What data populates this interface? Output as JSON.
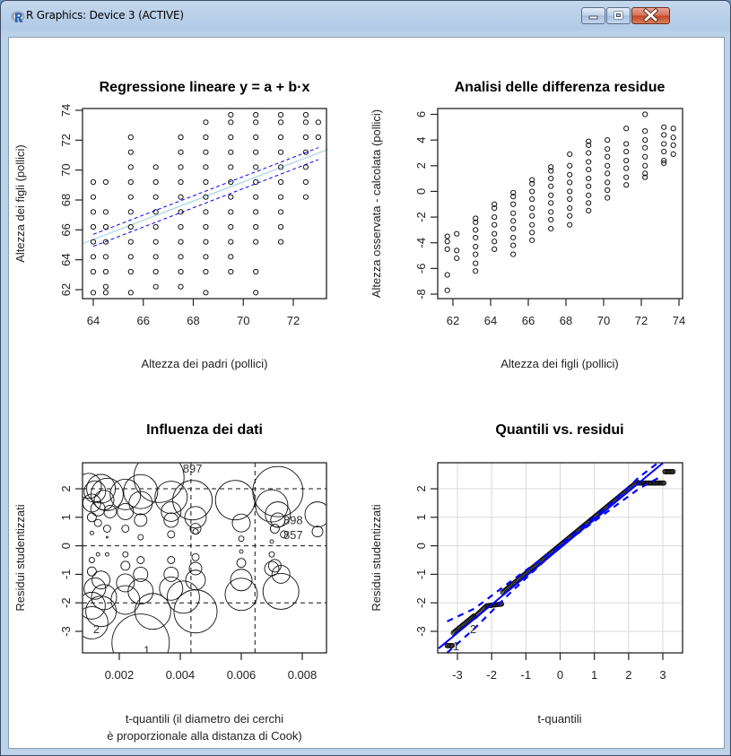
{
  "window": {
    "title": "R Graphics: Device 3 (ACTIVE)",
    "buttons": {
      "minimize": "minimize",
      "maximize": "maximize",
      "close": "close"
    }
  },
  "chart_data": [
    {
      "type": "scatter",
      "title": "Regressione lineare y = a + b·x",
      "xlabel": "Altezza dei padri (pollici)",
      "ylabel": "Altezza dei figli (pollici)",
      "xlim": [
        63.6,
        73.4
      ],
      "ylim": [
        61.4,
        74.4
      ],
      "xticks": [
        64,
        66,
        68,
        70,
        72
      ],
      "yticks": [
        62,
        64,
        66,
        68,
        70,
        72,
        74
      ],
      "grid": false,
      "columns": [
        {
          "x": 64.0,
          "y": [
            61.8,
            63.2,
            64.2,
            65.2,
            66.2,
            67.2,
            68.2,
            69.2
          ]
        },
        {
          "x": 64.5,
          "y": [
            61.8,
            62.2,
            63.2,
            64.2,
            65.2,
            66.2,
            67.2,
            69.2
          ]
        },
        {
          "x": 65.5,
          "y": [
            61.8,
            63.2,
            64.2,
            65.2,
            66.2,
            67.2,
            68.2,
            69.2,
            70.2,
            71.2,
            72.2
          ]
        },
        {
          "x": 66.5,
          "y": [
            62.2,
            63.2,
            64.2,
            65.2,
            66.2,
            67.2,
            68.2,
            69.2,
            70.2
          ]
        },
        {
          "x": 67.5,
          "y": [
            62.2,
            63.2,
            64.2,
            65.2,
            66.2,
            67.2,
            68.2,
            69.2,
            70.2,
            71.2,
            72.2
          ]
        },
        {
          "x": 68.5,
          "y": [
            61.8,
            63.2,
            64.2,
            65.2,
            66.2,
            67.2,
            68.2,
            69.2,
            70.2,
            71.2,
            72.2,
            73.2
          ]
        },
        {
          "x": 69.5,
          "y": [
            63.2,
            64.2,
            65.2,
            66.2,
            67.2,
            68.2,
            69.2,
            70.2,
            71.2,
            72.2,
            73.2,
            73.7
          ]
        },
        {
          "x": 70.5,
          "y": [
            61.8,
            63.2,
            65.2,
            66.2,
            67.2,
            68.2,
            69.2,
            70.2,
            71.2,
            72.2,
            73.2,
            73.7
          ]
        },
        {
          "x": 71.5,
          "y": [
            65.2,
            66.2,
            67.2,
            68.2,
            69.2,
            70.2,
            71.2,
            72.2,
            73.2,
            73.7
          ]
        },
        {
          "x": 72.5,
          "y": [
            68.2,
            69.2,
            70.2,
            71.2,
            72.2,
            73.2,
            73.7
          ]
        },
        {
          "x": 73.0,
          "y": [
            72.2,
            73.2
          ]
        }
      ],
      "regression_line": {
        "x": [
          63.6,
          73.4
        ],
        "y": [
          65.1,
          71.4
        ],
        "color": "#add8e6"
      },
      "confidence_band": {
        "x": [
          64.0,
          73.0
        ],
        "upper": [
          65.7,
          71.5
        ],
        "lower": [
          64.9,
          70.7
        ],
        "color": "#0000ff",
        "style": "dashed"
      }
    },
    {
      "type": "scatter",
      "title": "Analisi delle differenza residue",
      "xlabel": "Altezza dei figli (pollici)",
      "ylabel": "Altezza osservata - calcolata (pollici)",
      "xlim": [
        61.5,
        74.3
      ],
      "ylim": [
        -8.5,
        6.5
      ],
      "xticks": [
        62,
        64,
        66,
        68,
        70,
        72,
        74
      ],
      "yticks": [
        -8,
        -6,
        -4,
        -2,
        0,
        2,
        4,
        6
      ],
      "grid": false,
      "columns": [
        {
          "x": 61.7,
          "y": [
            -7.7,
            -6.5,
            -4.5,
            -3.9,
            -3.5
          ]
        },
        {
          "x": 62.2,
          "y": [
            -5.2,
            -4.6,
            -3.3
          ]
        },
        {
          "x": 63.2,
          "y": [
            -6.2,
            -5.6,
            -4.9,
            -4.3,
            -3.6,
            -3.0,
            -2.4,
            -2.1
          ]
        },
        {
          "x": 64.2,
          "y": [
            -4.5,
            -3.9,
            -3.3,
            -2.6,
            -2.0,
            -1.3,
            -1.0
          ]
        },
        {
          "x": 65.2,
          "y": [
            -4.9,
            -4.2,
            -3.6,
            -2.9,
            -2.3,
            -1.7,
            -1.0,
            -0.4,
            -0.1
          ]
        },
        {
          "x": 66.2,
          "y": [
            -3.8,
            -3.2,
            -2.6,
            -1.9,
            -1.3,
            -0.6,
            0.0,
            0.6,
            0.9
          ]
        },
        {
          "x": 67.2,
          "y": [
            -2.9,
            -2.2,
            -1.6,
            -0.9,
            -0.3,
            0.4,
            1.0,
            1.6,
            1.9
          ]
        },
        {
          "x": 68.2,
          "y": [
            -2.6,
            -1.9,
            -1.3,
            -0.6,
            0.0,
            0.7,
            1.3,
            2.0,
            2.9
          ]
        },
        {
          "x": 69.2,
          "y": [
            -1.5,
            -0.9,
            -0.3,
            0.4,
            1.0,
            1.7,
            2.3,
            3.0,
            3.6,
            3.9
          ]
        },
        {
          "x": 70.2,
          "y": [
            -0.5,
            0.1,
            0.7,
            1.4,
            2.0,
            2.7,
            3.3,
            4.0
          ]
        },
        {
          "x": 71.2,
          "y": [
            0.5,
            1.1,
            1.8,
            2.4,
            3.1,
            3.7,
            4.9
          ]
        },
        {
          "x": 72.2,
          "y": [
            1.1,
            1.4,
            2.0,
            2.7,
            3.4,
            4.0,
            4.7,
            6.0
          ]
        },
        {
          "x": 73.2,
          "y": [
            2.2,
            2.4,
            3.1,
            3.7,
            4.4,
            5.0
          ]
        },
        {
          "x": 73.7,
          "y": [
            2.9,
            3.6,
            4.2,
            4.9
          ]
        }
      ]
    },
    {
      "type": "scatter",
      "title": "Influenza dei dati",
      "xlabel": "t-quantili (il diametro dei cerchi è proporzionale alla distanza di Cook)",
      "xlabel_lines": [
        "t-quantili (il diametro dei cerchi",
        "è proporzionale alla distanza di Cook)"
      ],
      "ylabel": "Residui studentizzati",
      "xlim": [
        0.00088,
        0.00887
      ],
      "ylim": [
        -3.7,
        2.9
      ],
      "xticks": [
        "0.002",
        "0.004",
        "0.006",
        "0.008"
      ],
      "yticks": [
        -3,
        -2,
        -1,
        0,
        1,
        2
      ],
      "reference_lines": {
        "h": [
          -2,
          0,
          2
        ],
        "v": [
          0.00435,
          0.00645
        ],
        "style": "dashed"
      },
      "annotations": [
        {
          "label": "897",
          "x": 0.0044,
          "y": 2.73
        },
        {
          "label": "898",
          "x": 0.0077,
          "y": 0.92
        },
        {
          "label": "857",
          "x": 0.0077,
          "y": 0.4
        },
        {
          "label": "2",
          "x": 0.00125,
          "y": -2.9
        },
        {
          "label": "1",
          "x": 0.0029,
          "y": -3.65
        }
      ],
      "bubbles": [
        {
          "x": 0.001,
          "y": 2.1,
          "r": 14
        },
        {
          "x": 0.0012,
          "y": 1.9,
          "r": 12
        },
        {
          "x": 0.0014,
          "y": 2.0,
          "r": 16
        },
        {
          "x": 0.0016,
          "y": 1.8,
          "r": 18
        },
        {
          "x": 0.0011,
          "y": 1.5,
          "r": 10
        },
        {
          "x": 0.0013,
          "y": 1.3,
          "r": 8
        },
        {
          "x": 0.0015,
          "y": 1.6,
          "r": 11
        },
        {
          "x": 0.0017,
          "y": 1.2,
          "r": 7
        },
        {
          "x": 0.0011,
          "y": 1.0,
          "r": 5
        },
        {
          "x": 0.0013,
          "y": 0.8,
          "r": 4
        },
        {
          "x": 0.0016,
          "y": 0.6,
          "r": 4
        },
        {
          "x": 0.0011,
          "y": 0.45,
          "r": 2
        },
        {
          "x": 0.0016,
          "y": 0.3,
          "r": 1
        },
        {
          "x": 0.0022,
          "y": 1.8,
          "r": 17
        },
        {
          "x": 0.0022,
          "y": 1.2,
          "r": 9
        },
        {
          "x": 0.0022,
          "y": 0.6,
          "r": 4
        },
        {
          "x": 0.0027,
          "y": 1.9,
          "r": 19
        },
        {
          "x": 0.0027,
          "y": 1.5,
          "r": 13
        },
        {
          "x": 0.0027,
          "y": 0.9,
          "r": 7
        },
        {
          "x": 0.0027,
          "y": 0.3,
          "r": 3
        },
        {
          "x": 0.0033,
          "y": 2.4,
          "r": 28
        },
        {
          "x": 0.0037,
          "y": 1.7,
          "r": 18
        },
        {
          "x": 0.0037,
          "y": 1.2,
          "r": 11
        },
        {
          "x": 0.0037,
          "y": 0.9,
          "r": 8
        },
        {
          "x": 0.0037,
          "y": 0.4,
          "r": 4
        },
        {
          "x": 0.0044,
          "y": 1.6,
          "r": 22
        },
        {
          "x": 0.0045,
          "y": 1.0,
          "r": 12
        },
        {
          "x": 0.0045,
          "y": 0.6,
          "r": 6
        },
        {
          "x": 0.0045,
          "y": 0.5,
          "r": 3
        },
        {
          "x": 0.0058,
          "y": 1.6,
          "r": 22
        },
        {
          "x": 0.006,
          "y": 0.8,
          "r": 10
        },
        {
          "x": 0.006,
          "y": 0.25,
          "r": 3
        },
        {
          "x": 0.0072,
          "y": 1.9,
          "r": 28
        },
        {
          "x": 0.007,
          "y": 1.4,
          "r": 18
        },
        {
          "x": 0.0072,
          "y": 1.1,
          "r": 14
        },
        {
          "x": 0.0072,
          "y": 0.9,
          "r": 8
        },
        {
          "x": 0.0071,
          "y": 0.6,
          "r": 5
        },
        {
          "x": 0.0074,
          "y": 0.4,
          "r": 4
        },
        {
          "x": 0.0085,
          "y": 1.1,
          "r": 14
        },
        {
          "x": 0.0085,
          "y": 0.5,
          "r": 6
        },
        {
          "x": 0.007,
          "y": 0.15,
          "r": 2
        },
        {
          "x": 0.0011,
          "y": -0.5,
          "r": 3
        },
        {
          "x": 0.0013,
          "y": -0.3,
          "r": 2
        },
        {
          "x": 0.0016,
          "y": -0.3,
          "r": 2
        },
        {
          "x": 0.0011,
          "y": -0.9,
          "r": 5
        },
        {
          "x": 0.0014,
          "y": -1.2,
          "r": 10
        },
        {
          "x": 0.0012,
          "y": -1.5,
          "r": 12
        },
        {
          "x": 0.0015,
          "y": -1.8,
          "r": 14
        },
        {
          "x": 0.0011,
          "y": -2.1,
          "r": 15
        },
        {
          "x": 0.0014,
          "y": -2.3,
          "r": 17
        },
        {
          "x": 0.0011,
          "y": -2.7,
          "r": 18
        },
        {
          "x": 0.0022,
          "y": -0.3,
          "r": 3
        },
        {
          "x": 0.0022,
          "y": -0.7,
          "r": 5
        },
        {
          "x": 0.0022,
          "y": -1.3,
          "r": 10
        },
        {
          "x": 0.0022,
          "y": -1.9,
          "r": 16
        },
        {
          "x": 0.0027,
          "y": -0.5,
          "r": 4
        },
        {
          "x": 0.0027,
          "y": -1.0,
          "r": 8
        },
        {
          "x": 0.0027,
          "y": -1.6,
          "r": 14
        },
        {
          "x": 0.0027,
          "y": -3.4,
          "r": 32
        },
        {
          "x": 0.0031,
          "y": -2.3,
          "r": 20
        },
        {
          "x": 0.0037,
          "y": -0.5,
          "r": 4
        },
        {
          "x": 0.0037,
          "y": -1.0,
          "r": 8
        },
        {
          "x": 0.0037,
          "y": -1.5,
          "r": 13
        },
        {
          "x": 0.0045,
          "y": -0.4,
          "r": 4
        },
        {
          "x": 0.0045,
          "y": -0.8,
          "r": 7
        },
        {
          "x": 0.0045,
          "y": -1.2,
          "r": 11
        },
        {
          "x": 0.0045,
          "y": -2.3,
          "r": 24
        },
        {
          "x": 0.0041,
          "y": -1.8,
          "r": 18
        },
        {
          "x": 0.006,
          "y": -0.2,
          "r": 2
        },
        {
          "x": 0.006,
          "y": -0.6,
          "r": 5
        },
        {
          "x": 0.006,
          "y": -1.2,
          "r": 12
        },
        {
          "x": 0.006,
          "y": -1.7,
          "r": 18
        },
        {
          "x": 0.007,
          "y": -0.3,
          "r": 3
        },
        {
          "x": 0.007,
          "y": -0.8,
          "r": 8
        },
        {
          "x": 0.0073,
          "y": -1.0,
          "r": 10
        },
        {
          "x": 0.0073,
          "y": -1.6,
          "r": 20
        },
        {
          "x": 0.0071,
          "y": -0.7,
          "r": 7
        }
      ]
    },
    {
      "type": "scatter",
      "title": "Quantili vs. residui",
      "xlabel": "t-quantili",
      "ylabel": "Residui studentizzati",
      "xlim": [
        -3.55,
        3.55
      ],
      "ylim": [
        -3.7,
        2.9
      ],
      "xticks": [
        -3,
        -2,
        -1,
        0,
        1,
        2,
        3
      ],
      "yticks": [
        -3,
        -2,
        -1,
        0,
        1,
        2
      ],
      "grid": true,
      "annotations": [
        {
          "label": "1",
          "x": -3.2,
          "y": -3.5
        },
        {
          "label": "2",
          "x": -2.7,
          "y": -2.9
        }
      ],
      "reference_line": {
        "x": [
          -3.55,
          3.0
        ],
        "y": [
          -3.6,
          2.9
        ],
        "color": "#0000ff"
      },
      "envelope": {
        "x": [
          -3.3,
          -2.5,
          -1.5,
          0,
          1.5,
          2.3,
          2.9
        ],
        "upper": [
          -2.65,
          -2.2,
          -1.3,
          0.02,
          1.5,
          2.4,
          2.95
        ],
        "lower": [
          -3.75,
          -2.9,
          -1.7,
          -0.02,
          1.3,
          2.0,
          2.4
        ],
        "color": "#0000ff",
        "style": "dashed"
      },
      "points_summary": "Dense points along the diagonal from (-3.3,-3.5) to (3.3,2.6); right tail flattens at y≈2.2 for x in 2.3..3.0; left tail flat near y≈-2.2 for x in -2.5..-1.7"
    }
  ]
}
